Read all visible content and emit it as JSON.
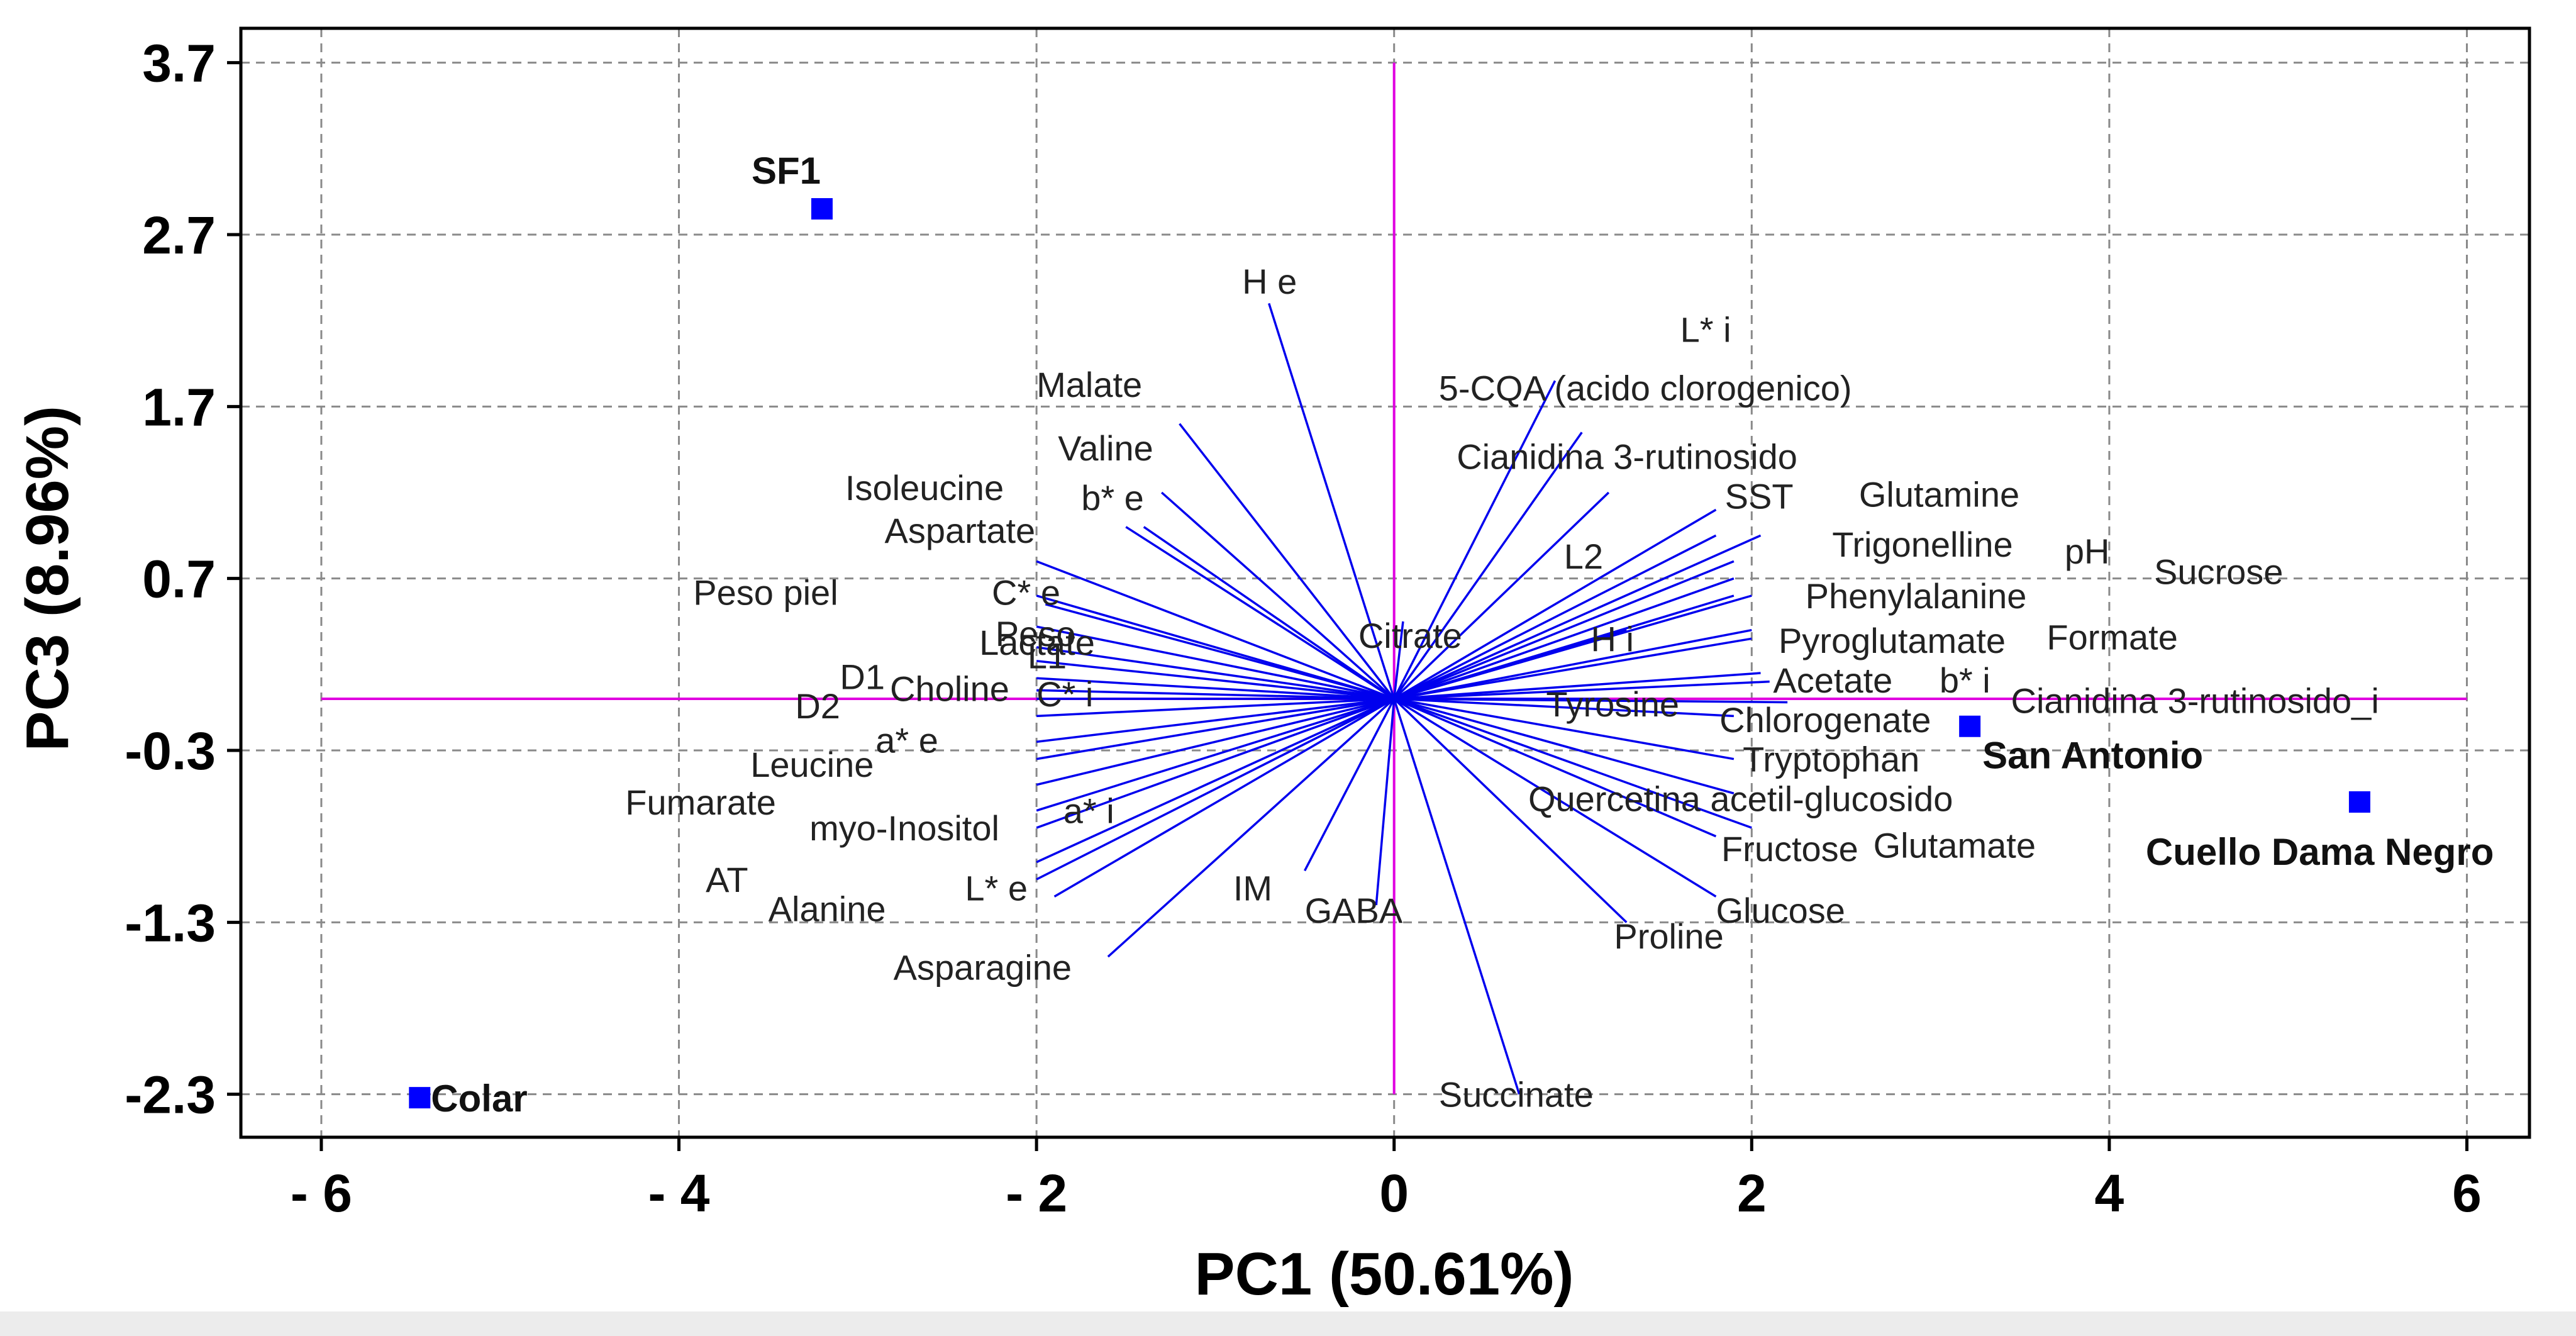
{
  "chart_data": {
    "type": "scatter",
    "subtype": "biplot",
    "title": "",
    "xlabel": "PC1 (50.61%)",
    "ylabel": "PC3 (8.96%)",
    "xlim": [
      -6.45,
      6.35
    ],
    "ylim": [
      -2.55,
      3.9
    ],
    "x_ticks": [
      -6,
      -4,
      -2,
      0,
      2,
      4,
      6
    ],
    "x_tick_labels": [
      "- 6",
      "- 4",
      "- 2",
      "0",
      "2",
      "4",
      "6"
    ],
    "y_ticks": [
      3.7,
      2.7,
      1.7,
      0.7,
      -0.3,
      -1.3,
      -2.3
    ],
    "y_tick_labels": [
      "3.7",
      "2.7",
      "1.7",
      "0.7",
      "-0.3",
      "-1.3",
      "-2.3"
    ],
    "grid": true,
    "reference_lines": {
      "x": 0,
      "y": 0,
      "color": "#e000e0"
    },
    "observations": [
      {
        "name": "SF1",
        "x": -3.2,
        "y": 2.85
      },
      {
        "name": "Colar",
        "x": -5.45,
        "y": -2.32
      },
      {
        "name": "San Antonio",
        "x": 3.22,
        "y": -0.16
      },
      {
        "name": "Cuello Dama Negro",
        "x": 5.4,
        "y": -0.6
      }
    ],
    "variables": [
      {
        "name": "H e",
        "x": -0.7,
        "y": 2.3,
        "lx": -0.85,
        "ly": 2.43
      },
      {
        "name": "L* i",
        "x": 0.9,
        "y": 1.85,
        "lx": 1.6,
        "ly": 2.15
      },
      {
        "name": "Malate",
        "x": -1.2,
        "y": 1.6,
        "lx": -2.0,
        "ly": 1.83
      },
      {
        "name": "5-CQA (acido clorogenico)",
        "x": 1.05,
        "y": 1.55,
        "lx": 0.25,
        "ly": 1.81
      },
      {
        "name": "Valine",
        "x": -1.3,
        "y": 1.2,
        "lx": -1.88,
        "ly": 1.46
      },
      {
        "name": "Cianidina 3-rutinosido",
        "x": 1.2,
        "y": 1.2,
        "lx": 0.35,
        "ly": 1.41
      },
      {
        "name": "Isoleucine",
        "x": -1.4,
        "y": 1.0,
        "lx": -3.07,
        "ly": 1.23
      },
      {
        "name": "b* e",
        "x": -1.5,
        "y": 1.0,
        "lx": -1.75,
        "ly": 1.17
      },
      {
        "name": "SST",
        "x": 1.8,
        "y": 1.1,
        "lx": 1.85,
        "ly": 1.18
      },
      {
        "name": "Glutamine",
        "x": 2.05,
        "y": 0.95,
        "lx": 2.6,
        "ly": 1.19
      },
      {
        "name": "Aspartate",
        "x": -2.0,
        "y": 0.8,
        "lx": -2.85,
        "ly": 0.98
      },
      {
        "name": "L2",
        "x": 1.8,
        "y": 0.95,
        "lx": 0.95,
        "ly": 0.83
      },
      {
        "name": "Trigonelline",
        "x": 1.9,
        "y": 0.8,
        "lx": 2.45,
        "ly": 0.9
      },
      {
        "name": "pH",
        "x": 1.9,
        "y": 0.7,
        "lx": 3.75,
        "ly": 0.86
      },
      {
        "name": "Sucrose",
        "x": 1.9,
        "y": 0.6,
        "lx": 4.25,
        "ly": 0.74
      },
      {
        "name": "Peso piel",
        "x": -2.0,
        "y": 0.6,
        "lx": -3.92,
        "ly": 0.62
      },
      {
        "name": "C* e",
        "x": -1.95,
        "y": 0.55,
        "lx": -2.25,
        "ly": 0.62
      },
      {
        "name": "Phenylalanine",
        "x": 2.0,
        "y": 0.6,
        "lx": 2.3,
        "ly": 0.6
      },
      {
        "name": "Peso",
        "x": -2.0,
        "y": 0.42,
        "lx": -2.23,
        "ly": 0.38
      },
      {
        "name": "Citrate",
        "x": 0.05,
        "y": 0.45,
        "lx": -0.2,
        "ly": 0.37
      },
      {
        "name": "H i",
        "x": 1.3,
        "y": 0.4,
        "lx": 1.1,
        "ly": 0.35
      },
      {
        "name": "Formate",
        "x": 2.0,
        "y": 0.4,
        "lx": 3.65,
        "ly": 0.36
      },
      {
        "name": "Lactate",
        "x": -2.0,
        "y": 0.3,
        "lx": -2.32,
        "ly": 0.33
      },
      {
        "name": "Pyroglutamate",
        "x": 2.0,
        "y": 0.35,
        "lx": 2.15,
        "ly": 0.34
      },
      {
        "name": "L1",
        "x": -2.0,
        "y": 0.22,
        "lx": -2.05,
        "ly": 0.25
      },
      {
        "name": "D1",
        "x": -2.0,
        "y": 0.12,
        "lx": -3.1,
        "ly": 0.13
      },
      {
        "name": "Acetate",
        "x": 2.05,
        "y": 0.15,
        "lx": 2.12,
        "ly": 0.11
      },
      {
        "name": "b* i",
        "x": 2.1,
        "y": 0.1,
        "lx": 3.05,
        "ly": 0.11
      },
      {
        "name": "Choline",
        "x": -2.0,
        "y": 0.05,
        "lx": -2.82,
        "ly": 0.06
      },
      {
        "name": "C* i",
        "x": -2.0,
        "y": 0.0,
        "lx": -2.0,
        "ly": 0.03
      },
      {
        "name": "Cianidina 3-rutinosido_i",
        "x": 2.2,
        "y": -0.02,
        "lx": 3.45,
        "ly": -0.01
      },
      {
        "name": "Tyrosine",
        "x": 1.2,
        "y": 0.0,
        "lx": 0.85,
        "ly": -0.03
      },
      {
        "name": "D2",
        "x": -2.0,
        "y": -0.1,
        "lx": -3.35,
        "ly": -0.04
      },
      {
        "name": "Chlorogenate",
        "x": 1.9,
        "y": -0.1,
        "lx": 1.82,
        "ly": -0.12
      },
      {
        "name": "a* e",
        "x": -2.0,
        "y": -0.25,
        "lx": -2.9,
        "ly": -0.24
      },
      {
        "name": "Leucine",
        "x": -2.0,
        "y": -0.35,
        "lx": -3.6,
        "ly": -0.38
      },
      {
        "name": "Tryptophan",
        "x": 1.9,
        "y": -0.35,
        "lx": 1.95,
        "ly": -0.35
      },
      {
        "name": "Fumarate",
        "x": -2.0,
        "y": -0.5,
        "lx": -4.3,
        "ly": -0.6
      },
      {
        "name": "Quercetina acetil-glucosido",
        "x": 1.9,
        "y": -0.55,
        "lx": 0.75,
        "ly": -0.58
      },
      {
        "name": "a* i",
        "x": -2.0,
        "y": -0.65,
        "lx": -1.85,
        "ly": -0.65
      },
      {
        "name": "myo-Inositol",
        "x": -2.0,
        "y": -0.75,
        "lx": -3.27,
        "ly": -0.75
      },
      {
        "name": "Fructose",
        "x": 1.8,
        "y": -0.8,
        "lx": 1.83,
        "ly": -0.87
      },
      {
        "name": "Glutamate",
        "x": 2.0,
        "y": -0.75,
        "lx": 2.68,
        "ly": -0.85
      },
      {
        "name": "AT",
        "x": -2.0,
        "y": -0.95,
        "lx": -3.85,
        "ly": -1.05
      },
      {
        "name": "L* e",
        "x": -2.0,
        "y": -1.05,
        "lx": -2.4,
        "ly": -1.1
      },
      {
        "name": "IM",
        "x": -0.5,
        "y": -1.0,
        "lx": -0.9,
        "ly": -1.1
      },
      {
        "name": "Alanine",
        "x": -1.9,
        "y": -1.15,
        "lx": -3.5,
        "ly": -1.22
      },
      {
        "name": "GABA",
        "x": -0.1,
        "y": -1.2,
        "lx": -0.5,
        "ly": -1.23
      },
      {
        "name": "Glucose",
        "x": 1.8,
        "y": -1.15,
        "lx": 1.8,
        "ly": -1.23
      },
      {
        "name": "Proline",
        "x": 1.3,
        "y": -1.3,
        "lx": 1.23,
        "ly": -1.38
      },
      {
        "name": "Asparagine",
        "x": -1.6,
        "y": -1.5,
        "lx": -2.8,
        "ly": -1.56
      },
      {
        "name": "Succinate",
        "x": 0.7,
        "y": -2.3,
        "lx": 0.25,
        "ly": -2.3
      }
    ]
  }
}
